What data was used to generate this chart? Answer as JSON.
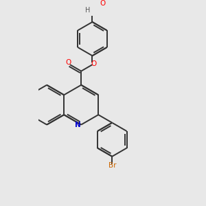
{
  "bg_color": "#e8e8e8",
  "bond_color": "#333333",
  "bond_width": 1.4,
  "atom_colors": {
    "O": "#ff0000",
    "N": "#0000cc",
    "Br": "#cc6600",
    "H": "#555555"
  },
  "fig_bg": "#e8e8e8",
  "xlim": [
    -1.0,
    5.5
  ],
  "ylim": [
    -4.5,
    5.0
  ]
}
